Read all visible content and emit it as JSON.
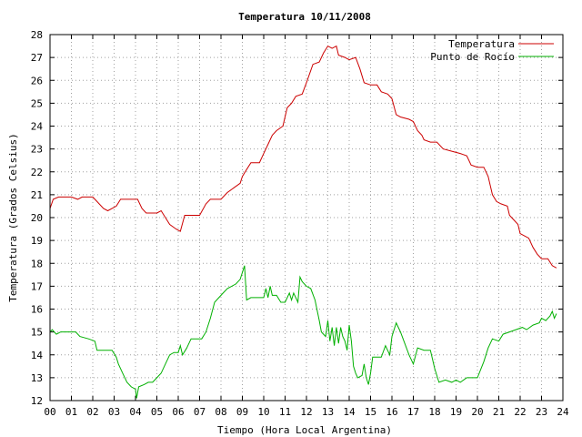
{
  "chart_data": {
    "type": "line",
    "title": "Temperatura 10/11/2008",
    "xlabel": "Tiempo (Hora Local Argentina)",
    "ylabel": "Temperatura (Grados Celsius)",
    "xlim": [
      0,
      24
    ],
    "ylim": [
      12,
      28
    ],
    "xticks": [
      "00",
      "01",
      "02",
      "03",
      "04",
      "05",
      "06",
      "07",
      "08",
      "09",
      "10",
      "11",
      "12",
      "13",
      "14",
      "15",
      "16",
      "17",
      "18",
      "19",
      "20",
      "21",
      "22",
      "23",
      "24"
    ],
    "yticks": [
      "12",
      "13",
      "14",
      "15",
      "16",
      "17",
      "18",
      "19",
      "20",
      "21",
      "22",
      "23",
      "24",
      "25",
      "26",
      "27",
      "28"
    ],
    "grid": true,
    "legend_position": "top-right",
    "series": [
      {
        "name": "Temperatura",
        "color": "#cc0000",
        "points": [
          [
            0,
            20.4
          ],
          [
            0.15,
            20.8
          ],
          [
            0.4,
            20.9
          ],
          [
            1.0,
            20.9
          ],
          [
            1.3,
            20.8
          ],
          [
            1.5,
            20.9
          ],
          [
            2.0,
            20.9
          ],
          [
            2.2,
            20.7
          ],
          [
            2.5,
            20.4
          ],
          [
            2.7,
            20.3
          ],
          [
            3.1,
            20.5
          ],
          [
            3.3,
            20.8
          ],
          [
            4.1,
            20.8
          ],
          [
            4.3,
            20.4
          ],
          [
            4.5,
            20.2
          ],
          [
            5.0,
            20.2
          ],
          [
            5.2,
            20.3
          ],
          [
            5.4,
            20.0
          ],
          [
            5.6,
            19.7
          ],
          [
            5.9,
            19.5
          ],
          [
            6.1,
            19.4
          ],
          [
            6.3,
            20.1
          ],
          [
            7.0,
            20.1
          ],
          [
            7.3,
            20.6
          ],
          [
            7.5,
            20.8
          ],
          [
            8.0,
            20.8
          ],
          [
            8.3,
            21.1
          ],
          [
            8.6,
            21.3
          ],
          [
            8.9,
            21.5
          ],
          [
            9.0,
            21.8
          ],
          [
            9.2,
            22.1
          ],
          [
            9.4,
            22.4
          ],
          [
            9.8,
            22.4
          ],
          [
            10.0,
            22.8
          ],
          [
            10.2,
            23.2
          ],
          [
            10.4,
            23.6
          ],
          [
            10.6,
            23.8
          ],
          [
            10.9,
            24.0
          ],
          [
            11.1,
            24.8
          ],
          [
            11.3,
            25.0
          ],
          [
            11.5,
            25.3
          ],
          [
            11.8,
            25.4
          ],
          [
            12.0,
            25.9
          ],
          [
            12.3,
            26.7
          ],
          [
            12.6,
            26.8
          ],
          [
            12.8,
            27.2
          ],
          [
            13.0,
            27.5
          ],
          [
            13.2,
            27.4
          ],
          [
            13.4,
            27.5
          ],
          [
            13.5,
            27.1
          ],
          [
            13.8,
            27.0
          ],
          [
            14.0,
            26.9
          ],
          [
            14.3,
            27.0
          ],
          [
            14.5,
            26.5
          ],
          [
            14.7,
            25.9
          ],
          [
            15.0,
            25.8
          ],
          [
            15.3,
            25.8
          ],
          [
            15.5,
            25.5
          ],
          [
            15.8,
            25.4
          ],
          [
            16.0,
            25.2
          ],
          [
            16.2,
            24.5
          ],
          [
            16.4,
            24.4
          ],
          [
            16.8,
            24.3
          ],
          [
            17.0,
            24.2
          ],
          [
            17.2,
            23.8
          ],
          [
            17.4,
            23.6
          ],
          [
            17.5,
            23.4
          ],
          [
            17.8,
            23.3
          ],
          [
            18.1,
            23.3
          ],
          [
            18.4,
            23.0
          ],
          [
            18.8,
            22.9
          ],
          [
            19.2,
            22.8
          ],
          [
            19.5,
            22.7
          ],
          [
            19.7,
            22.3
          ],
          [
            20.0,
            22.2
          ],
          [
            20.3,
            22.2
          ],
          [
            20.5,
            21.8
          ],
          [
            20.7,
            21.0
          ],
          [
            20.9,
            20.7
          ],
          [
            21.1,
            20.6
          ],
          [
            21.4,
            20.5
          ],
          [
            21.5,
            20.1
          ],
          [
            21.7,
            19.9
          ],
          [
            21.9,
            19.7
          ],
          [
            22.0,
            19.3
          ],
          [
            22.2,
            19.2
          ],
          [
            22.4,
            19.1
          ],
          [
            22.6,
            18.7
          ],
          [
            22.8,
            18.4
          ],
          [
            23.0,
            18.2
          ],
          [
            23.3,
            18.2
          ],
          [
            23.5,
            17.9
          ],
          [
            23.7,
            17.8
          ]
        ]
      },
      {
        "name": "Punto de Rocío",
        "color": "#00b000",
        "points": [
          [
            0,
            15.0
          ],
          [
            0.1,
            15.1
          ],
          [
            0.3,
            14.9
          ],
          [
            0.5,
            15.0
          ],
          [
            1.2,
            15.0
          ],
          [
            1.4,
            14.8
          ],
          [
            1.8,
            14.7
          ],
          [
            2.1,
            14.6
          ],
          [
            2.2,
            14.2
          ],
          [
            2.4,
            14.2
          ],
          [
            2.6,
            14.2
          ],
          [
            2.9,
            14.2
          ],
          [
            3.1,
            13.9
          ],
          [
            3.2,
            13.6
          ],
          [
            3.4,
            13.2
          ],
          [
            3.6,
            12.8
          ],
          [
            3.8,
            12.6
          ],
          [
            4.0,
            12.5
          ],
          [
            4.05,
            12.1
          ],
          [
            4.15,
            12.6
          ],
          [
            4.4,
            12.7
          ],
          [
            4.6,
            12.8
          ],
          [
            4.8,
            12.8
          ],
          [
            5.0,
            13.0
          ],
          [
            5.2,
            13.2
          ],
          [
            5.4,
            13.6
          ],
          [
            5.6,
            14.0
          ],
          [
            5.8,
            14.1
          ],
          [
            6.0,
            14.1
          ],
          [
            6.1,
            14.4
          ],
          [
            6.2,
            14.0
          ],
          [
            6.4,
            14.3
          ],
          [
            6.6,
            14.7
          ],
          [
            7.1,
            14.7
          ],
          [
            7.3,
            15.0
          ],
          [
            7.5,
            15.6
          ],
          [
            7.7,
            16.3
          ],
          [
            7.9,
            16.5
          ],
          [
            8.1,
            16.7
          ],
          [
            8.3,
            16.9
          ],
          [
            8.5,
            17.0
          ],
          [
            8.7,
            17.1
          ],
          [
            8.9,
            17.3
          ],
          [
            9.1,
            17.9
          ],
          [
            9.2,
            16.4
          ],
          [
            9.4,
            16.5
          ],
          [
            9.6,
            16.5
          ],
          [
            10.0,
            16.5
          ],
          [
            10.1,
            16.9
          ],
          [
            10.2,
            16.5
          ],
          [
            10.3,
            17.0
          ],
          [
            10.4,
            16.6
          ],
          [
            10.6,
            16.6
          ],
          [
            10.8,
            16.3
          ],
          [
            11.0,
            16.3
          ],
          [
            11.2,
            16.7
          ],
          [
            11.3,
            16.4
          ],
          [
            11.4,
            16.7
          ],
          [
            11.6,
            16.3
          ],
          [
            11.7,
            17.4
          ],
          [
            11.8,
            17.2
          ],
          [
            12.0,
            17.0
          ],
          [
            12.2,
            16.9
          ],
          [
            12.4,
            16.4
          ],
          [
            12.6,
            15.5
          ],
          [
            12.7,
            15.0
          ],
          [
            12.9,
            14.8
          ],
          [
            13.0,
            15.5
          ],
          [
            13.1,
            14.6
          ],
          [
            13.2,
            15.2
          ],
          [
            13.3,
            14.4
          ],
          [
            13.4,
            15.2
          ],
          [
            13.5,
            14.5
          ],
          [
            13.6,
            15.2
          ],
          [
            13.7,
            14.8
          ],
          [
            13.8,
            14.6
          ],
          [
            13.9,
            14.2
          ],
          [
            14.0,
            15.3
          ],
          [
            14.1,
            14.6
          ],
          [
            14.2,
            13.5
          ],
          [
            14.3,
            13.2
          ],
          [
            14.4,
            13.0
          ],
          [
            14.6,
            13.1
          ],
          [
            14.7,
            13.6
          ],
          [
            14.8,
            13.0
          ],
          [
            14.9,
            12.7
          ],
          [
            15.0,
            13.2
          ],
          [
            15.1,
            13.9
          ],
          [
            15.5,
            13.9
          ],
          [
            15.7,
            14.4
          ],
          [
            15.9,
            14.0
          ],
          [
            16.0,
            14.8
          ],
          [
            16.2,
            15.4
          ],
          [
            16.4,
            15.0
          ],
          [
            16.6,
            14.5
          ],
          [
            16.8,
            14.0
          ],
          [
            17.0,
            13.6
          ],
          [
            17.2,
            14.3
          ],
          [
            17.5,
            14.2
          ],
          [
            17.8,
            14.2
          ],
          [
            18.0,
            13.4
          ],
          [
            18.2,
            12.8
          ],
          [
            18.5,
            12.9
          ],
          [
            18.8,
            12.8
          ],
          [
            19.0,
            12.9
          ],
          [
            19.2,
            12.8
          ],
          [
            19.5,
            13.0
          ],
          [
            19.8,
            13.0
          ],
          [
            20.0,
            13.0
          ],
          [
            20.3,
            13.7
          ],
          [
            20.5,
            14.3
          ],
          [
            20.7,
            14.7
          ],
          [
            21.0,
            14.6
          ],
          [
            21.2,
            14.9
          ],
          [
            21.5,
            15.0
          ],
          [
            21.8,
            15.1
          ],
          [
            22.1,
            15.2
          ],
          [
            22.3,
            15.1
          ],
          [
            22.6,
            15.3
          ],
          [
            22.9,
            15.4
          ],
          [
            23.0,
            15.6
          ],
          [
            23.2,
            15.5
          ],
          [
            23.4,
            15.7
          ],
          [
            23.5,
            15.9
          ],
          [
            23.6,
            15.6
          ],
          [
            23.7,
            15.8
          ]
        ]
      }
    ]
  }
}
